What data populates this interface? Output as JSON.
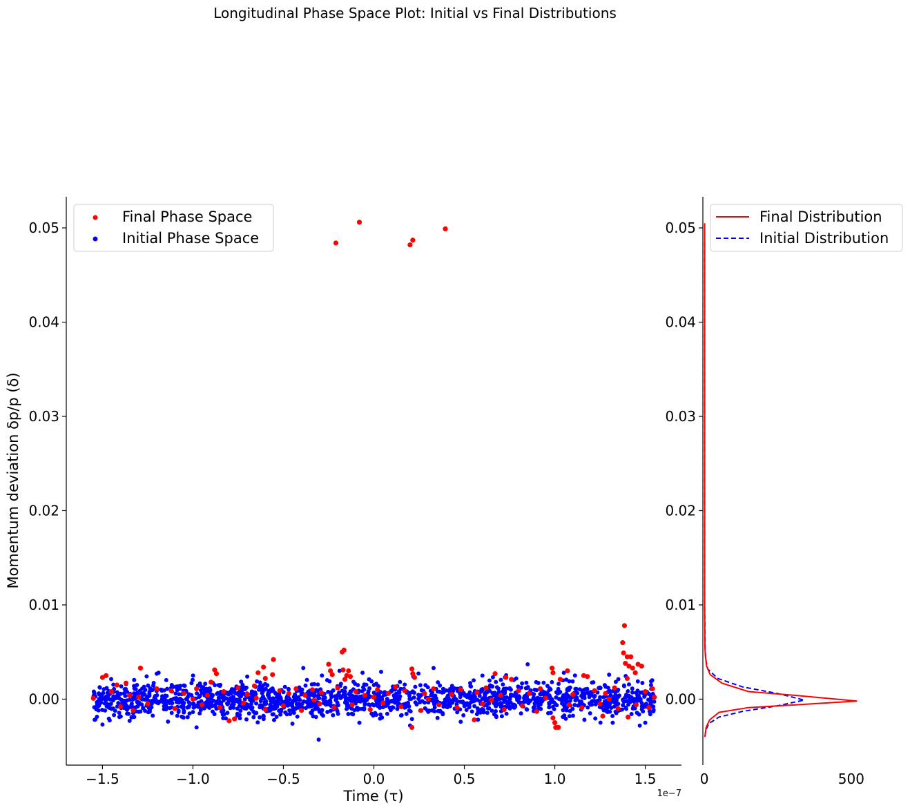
{
  "figure": {
    "title": "Longitudinal Phase Space Plot: Initial vs Final Distributions"
  },
  "colors": {
    "final": "#ff0000",
    "initial": "#0000ff",
    "axis": "#000000"
  },
  "chart_data": [
    {
      "type": "scatter",
      "xlabel": "Time (τ)",
      "ylabel": "Momentum deviation δp/p (δ)",
      "x_offset_label": "1e−7",
      "xlim": [
        -1.7,
        1.7
      ],
      "ylim": [
        -0.007,
        0.0533
      ],
      "x_unit_scale": "1e-7",
      "xticks": [
        -1.5,
        -1.0,
        -0.5,
        0.0,
        0.5,
        1.0,
        1.5
      ],
      "xtick_labels": [
        "−1.5",
        "−1.0",
        "−0.5",
        "0.0",
        "0.5",
        "1.0",
        "1.5"
      ],
      "yticks": [
        0.0,
        0.01,
        0.02,
        0.03,
        0.04,
        0.05
      ],
      "ytick_labels": [
        "0.00",
        "0.01",
        "0.02",
        "0.03",
        "0.04",
        "0.05"
      ],
      "grid": false,
      "legend_position": "top-left",
      "series": [
        {
          "name": "Final Phase Space",
          "color": "#ff0000",
          "points": [
            [
              -0.21,
              0.0484
            ],
            [
              -0.08,
              0.0506
            ],
            [
              0.2,
              0.0482
            ],
            [
              0.215,
              0.0487
            ],
            [
              0.395,
              0.0499
            ],
            [
              1.385,
              0.0078
            ],
            [
              1.375,
              0.006
            ],
            [
              1.38,
              0.0049
            ],
            [
              1.4,
              0.0045
            ],
            [
              1.42,
              0.0045
            ],
            [
              1.39,
              0.0038
            ],
            [
              1.41,
              0.0035
            ],
            [
              1.43,
              0.0033
            ],
            [
              1.46,
              0.0037
            ],
            [
              1.48,
              0.0035
            ],
            [
              1.445,
              0.0028
            ],
            [
              1.4,
              0.0022
            ],
            [
              1.405,
              -0.0019
            ],
            [
              -0.165,
              0.0052
            ],
            [
              -0.175,
              0.005
            ],
            [
              -0.25,
              0.0037
            ],
            [
              -0.24,
              0.003
            ],
            [
              -0.23,
              0.0026
            ],
            [
              -0.17,
              0.0031
            ],
            [
              -0.15,
              0.0025
            ],
            [
              -0.14,
              0.003
            ],
            [
              -0.13,
              0.0024
            ],
            [
              -0.16,
              0.0021
            ],
            [
              -0.555,
              0.0042
            ],
            [
              -0.56,
              0.0026
            ],
            [
              -0.61,
              0.0034
            ],
            [
              -0.6,
              0.0022
            ],
            [
              -0.64,
              0.0028
            ],
            [
              -0.88,
              0.0031
            ],
            [
              -0.87,
              0.0027
            ],
            [
              -0.9,
              0.0018
            ],
            [
              -1.29,
              0.0033
            ],
            [
              -1.48,
              0.0025
            ],
            [
              -1.5,
              0.0023
            ],
            [
              -1.42,
              0.0015
            ],
            [
              -1.37,
              0.0017
            ],
            [
              0.21,
              0.0032
            ],
            [
              0.215,
              0.0027
            ],
            [
              0.225,
              0.0023
            ],
            [
              0.21,
              -0.003
            ],
            [
              0.67,
              0.0027
            ],
            [
              0.73,
              0.0023
            ],
            [
              0.76,
              0.0021
            ],
            [
              0.985,
              0.0033
            ],
            [
              0.99,
              0.0028
            ],
            [
              1.03,
              0.0021
            ],
            [
              1.07,
              0.003
            ],
            [
              1.16,
              0.0025
            ],
            [
              1.18,
              0.0024
            ],
            [
              1.0,
              -0.0025
            ],
            [
              1.005,
              -0.003
            ],
            [
              1.02,
              -0.003
            ],
            [
              0.99,
              -0.002
            ],
            [
              1.265,
              -0.0018
            ],
            [
              0.555,
              -0.0022
            ],
            [
              -0.8,
              -0.0023
            ],
            [
              -0.77,
              -0.0021
            ],
            [
              -1.33,
              -0.0012
            ],
            [
              -1.45,
              0.0008
            ],
            [
              -1.35,
              0.0004
            ],
            [
              -1.2,
              0.0011
            ],
            [
              -1.12,
              0.0009
            ],
            [
              -1.05,
              0.0006
            ],
            [
              -0.98,
              0.0011
            ],
            [
              -0.92,
              0.0004
            ],
            [
              -0.83,
              0.0008
            ],
            [
              -0.75,
              0.0012
            ],
            [
              -0.7,
              0.0005
            ],
            [
              -0.66,
              0.0014
            ],
            [
              -0.52,
              0.0009
            ],
            [
              -0.47,
              0.0006
            ],
            [
              -0.43,
              0.0011
            ],
            [
              -0.38,
              0.0004
            ],
            [
              -0.34,
              0.001
            ],
            [
              -0.29,
              0.0007
            ],
            [
              -0.2,
              0.0012
            ],
            [
              -0.1,
              0.0008
            ],
            [
              -0.05,
              0.0004
            ],
            [
              0.02,
              0.001
            ],
            [
              0.08,
              0.0006
            ],
            [
              0.12,
              0.0013
            ],
            [
              0.17,
              0.0009
            ],
            [
              0.28,
              0.0006
            ],
            [
              0.33,
              0.0011
            ],
            [
              0.43,
              0.0005
            ],
            [
              0.48,
              0.001
            ],
            [
              0.57,
              0.0007
            ],
            [
              0.62,
              0.0012
            ],
            [
              0.7,
              0.0004
            ],
            [
              0.8,
              0.0009
            ],
            [
              0.86,
              0.0006
            ],
            [
              0.92,
              0.0011
            ],
            [
              1.1,
              0.0005
            ],
            [
              1.22,
              0.0009
            ],
            [
              1.28,
              0.0006
            ],
            [
              1.33,
              0.0012
            ],
            [
              1.5,
              0.0008
            ],
            [
              1.54,
              0.0011
            ],
            [
              -1.4,
              -0.0008
            ],
            [
              -1.25,
              -0.0005
            ],
            [
              -1.1,
              -0.001
            ],
            [
              -0.95,
              -0.0006
            ],
            [
              -0.85,
              -0.0009
            ],
            [
              -0.72,
              -0.0004
            ],
            [
              -0.6,
              -0.0011
            ],
            [
              -0.5,
              -0.0007
            ],
            [
              -0.4,
              -0.0012
            ],
            [
              -0.3,
              -0.0005
            ],
            [
              -0.22,
              -0.0009
            ],
            [
              -0.12,
              -0.0006
            ],
            [
              -0.02,
              -0.0011
            ],
            [
              0.05,
              -0.0004
            ],
            [
              0.15,
              -0.0008
            ],
            [
              0.26,
              -0.0012
            ],
            [
              0.36,
              -0.0006
            ],
            [
              0.46,
              -0.0009
            ],
            [
              0.6,
              -0.0005
            ],
            [
              0.72,
              -0.0011
            ],
            [
              0.82,
              -0.0007
            ],
            [
              0.9,
              -0.0013
            ],
            [
              1.08,
              -0.0006
            ],
            [
              1.15,
              -0.0009
            ],
            [
              1.25,
              -0.0005
            ],
            [
              1.35,
              -0.001
            ],
            [
              1.45,
              -0.0006
            ],
            [
              1.52,
              -0.0009
            ],
            [
              -1.55,
              0.0001
            ],
            [
              -1.3,
              0.0002
            ],
            [
              -1.0,
              0.0
            ],
            [
              -0.65,
              0.0001
            ],
            [
              -0.33,
              -0.0001
            ],
            [
              0.0,
              0.0002
            ],
            [
              0.3,
              0.0
            ],
            [
              0.65,
              -0.0001
            ],
            [
              0.95,
              0.0001
            ],
            [
              1.3,
              0.0
            ],
            [
              1.55,
              0.0002
            ]
          ]
        },
        {
          "name": "Initial Phase Space",
          "color": "#0000ff",
          "points": [
            [
              -0.305,
              -0.0043
            ],
            [
              0.85,
              0.0037
            ],
            [
              0.33,
              0.0033
            ],
            [
              -0.39,
              0.0033
            ],
            [
              -0.19,
              0.003
            ],
            [
              1.05,
              0.0028
            ],
            [
              -1.5,
              -0.0027
            ],
            [
              -0.98,
              -0.003
            ],
            [
              1.3,
              0.0026
            ],
            [
              -1.2,
              0.0027
            ],
            [
              0.04,
              0.0029
            ],
            [
              -0.45,
              -0.0026
            ],
            [
              0.6,
              0.0025
            ],
            [
              -0.7,
              0.0024
            ],
            [
              1.5,
              -0.0025
            ],
            [
              1.32,
              -0.0025
            ],
            [
              0.2,
              -0.0028
            ],
            [
              -0.08,
              -0.0025
            ],
            [
              0.48,
              -0.0024
            ],
            [
              -1.35,
              -0.0023
            ]
          ],
          "random_cloud": {
            "count": 1700,
            "x_range": [
              -1.55,
              1.55
            ],
            "y_mean": 0.0,
            "y_std": 0.0009,
            "y_clip": [
              -0.0028,
              0.0028
            ],
            "seed": 7
          }
        }
      ]
    },
    {
      "type": "line",
      "ylim": [
        -0.007,
        0.0533
      ],
      "xlim": [
        -5,
        700
      ],
      "xticks": [
        0,
        500
      ],
      "xtick_labels": [
        "0",
        "500"
      ],
      "legend_position": "top-right",
      "series": [
        {
          "name": "Final Distribution",
          "color": "#ff0000",
          "style": "solid",
          "points": [
            [
              1,
              0.0505
            ],
            [
              1,
              0.045
            ],
            [
              1,
              0.04
            ],
            [
              1,
              0.03
            ],
            [
              1,
              0.02
            ],
            [
              1,
              0.01
            ],
            [
              2,
              0.0055
            ],
            [
              4,
              0.0045
            ],
            [
              8,
              0.0035
            ],
            [
              20,
              0.0026
            ],
            [
              60,
              0.0017
            ],
            [
              150,
              0.0008
            ],
            [
              310,
              0.0004
            ],
            [
              520,
              -0.0002
            ],
            [
              310,
              -0.0006
            ],
            [
              150,
              -0.0009
            ],
            [
              50,
              -0.0014
            ],
            [
              18,
              -0.0022
            ],
            [
              6,
              -0.003
            ],
            [
              2,
              -0.004
            ]
          ]
        },
        {
          "name": "Initial Distribution",
          "color": "#0000ff",
          "style": "dashed",
          "points": [
            [
              1,
              0.0485
            ],
            [
              1,
              0.045
            ],
            [
              1,
              0.04
            ],
            [
              1,
              0.03
            ],
            [
              1,
              0.02
            ],
            [
              1,
              0.01
            ],
            [
              3,
              0.005
            ],
            [
              6,
              0.004
            ],
            [
              12,
              0.0032
            ],
            [
              45,
              0.0022
            ],
            [
              130,
              0.0013
            ],
            [
              250,
              0.0006
            ],
            [
              340,
              -0.0001
            ],
            [
              250,
              -0.0007
            ],
            [
              130,
              -0.0013
            ],
            [
              50,
              -0.0019
            ],
            [
              15,
              -0.0026
            ],
            [
              5,
              -0.0033
            ],
            [
              2,
              -0.004
            ]
          ]
        }
      ]
    }
  ]
}
